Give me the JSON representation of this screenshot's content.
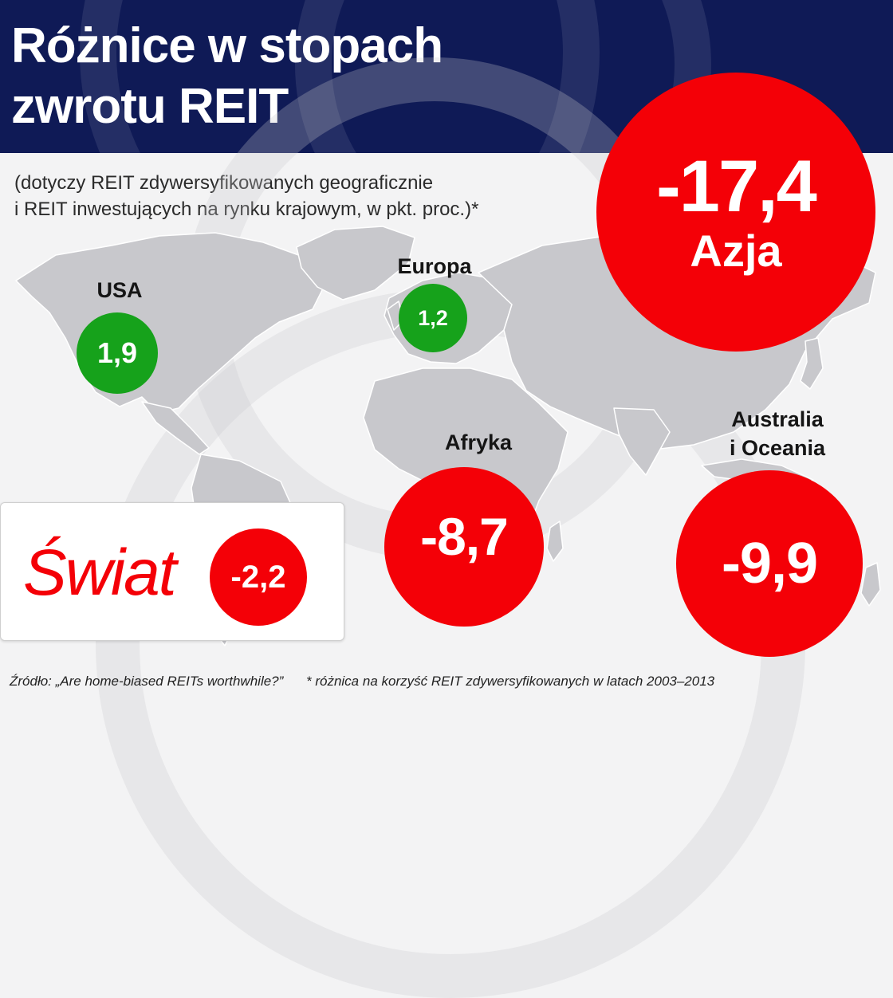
{
  "header": {
    "title_line1": "Różnice w stopach",
    "title_line2": "zwrotu REIT"
  },
  "subtitle": {
    "line1": "(dotyczy REIT zdywersyfikowanych geograficznie",
    "line2": "i REIT inwestujących na rynku krajowym, w pkt. proc.)*"
  },
  "regions": {
    "usa": {
      "label": "USA",
      "value": "1,9"
    },
    "europa": {
      "label": "Europa",
      "value": "1,2"
    },
    "azja": {
      "label": "Azja",
      "value": "-17,4"
    },
    "afryka": {
      "label": "Afryka",
      "value": "-8,7"
    },
    "australia": {
      "label_line1": "Australia",
      "label_line2": "i Oceania",
      "value": "-9,9"
    }
  },
  "world": {
    "label": "Świat",
    "value": "-2,2"
  },
  "footer": {
    "source": "Źródło: „Are home-biased REITs worthwhile?”",
    "note": "* różnica na korzyść REIT zdywersyfikowanych w latach 2003–2013"
  },
  "colors": {
    "header": "#0f1a56",
    "positive": "#16a21b",
    "negative": "#f40007",
    "map": "#c8c8cc",
    "background": "#f3f3f4"
  }
}
